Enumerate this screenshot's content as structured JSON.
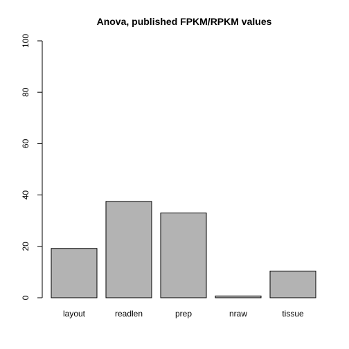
{
  "chart_data": {
    "type": "bar",
    "title": "Anova, published FPKM/RPKM values",
    "xlabel": "",
    "ylabel": "",
    "categories": [
      "layout",
      "readlen",
      "prep",
      "nraw",
      "tissue"
    ],
    "values": [
      19.2,
      37.5,
      33.0,
      0.7,
      10.4
    ],
    "ylim": [
      0,
      100
    ],
    "yticks": [
      "0",
      "20",
      "40",
      "60",
      "80",
      "100"
    ],
    "grid": false,
    "bar_color": "#b3b3b3",
    "bar_edge_color": "#000000"
  }
}
